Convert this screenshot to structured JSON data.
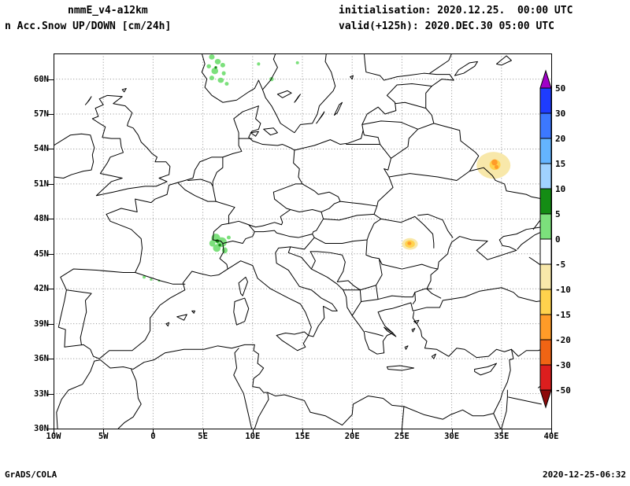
{
  "header": {
    "model_title": "nmmE_v4-a12km",
    "variable_title": "n Acc.Snow UP/DOWN [cm/24h]",
    "init_line": "initialisation: 2020.12.25.  00:00 UTC",
    "valid_line": "valid(+125h): 2020.DEC.30 05:00 UTC"
  },
  "footer": {
    "credit": "GrADS/COLA",
    "generated": "2020-12-25-06:32"
  },
  "chart_data": {
    "type": "map",
    "projection": "latlon",
    "region": "Europe",
    "lon_range": [
      -10,
      40
    ],
    "lat_range": [
      30,
      62.2
    ],
    "grid": "dotted",
    "grid_color": "#909090",
    "map_outline_color": "#000000",
    "lat_ticks": [
      {
        "label": "60N",
        "value": 60
      },
      {
        "label": "57N",
        "value": 57
      },
      {
        "label": "54N",
        "value": 54
      },
      {
        "label": "51N",
        "value": 51
      },
      {
        "label": "48N",
        "value": 48
      },
      {
        "label": "45N",
        "value": 45
      },
      {
        "label": "42N",
        "value": 42
      },
      {
        "label": "39N",
        "value": 39
      },
      {
        "label": "36N",
        "value": 36
      },
      {
        "label": "33N",
        "value": 33
      },
      {
        "label": "30N",
        "value": 30
      }
    ],
    "lon_ticks": [
      {
        "label": "10W",
        "value": -10
      },
      {
        "label": "5W",
        "value": -5
      },
      {
        "label": "0",
        "value": 0
      },
      {
        "label": "5E",
        "value": 5
      },
      {
        "label": "10E",
        "value": 10
      },
      {
        "label": "15E",
        "value": 15
      },
      {
        "label": "20E",
        "value": 20
      },
      {
        "label": "25E",
        "value": 25
      },
      {
        "label": "30E",
        "value": 30
      },
      {
        "label": "35E",
        "value": 35
      },
      {
        "label": "40E",
        "value": 40
      }
    ],
    "colorbar": {
      "unit": "cm/24h",
      "labels": [
        "50",
        "30",
        "20",
        "15",
        "10",
        "5",
        "0",
        "-5",
        "-10",
        "-15",
        "-20",
        "-30",
        "-50"
      ],
      "colors": [
        "#a000c8",
        "#1e3cff",
        "#3c78ff",
        "#64b4ff",
        "#a0d2ff",
        "#148c14",
        "#7ce07c",
        "#ffffff",
        "#f8e8aa",
        "#ffd24d",
        "#ff9b28",
        "#f06414",
        "#dc1e1e",
        "#8c0a0a"
      ]
    },
    "anomalies": [
      {
        "name": "snow-decrease-halo-russia",
        "lon": 34.2,
        "lat": 52.6,
        "rx": 1.7,
        "ry": 1.15,
        "color": "#f8e8aa"
      },
      {
        "name": "snow-decrease-mid-russia",
        "lon": 34.35,
        "lat": 52.65,
        "rx": 0.55,
        "ry": 0.45,
        "color": "#ffd24d"
      },
      {
        "name": "snow-decrease-core-russia",
        "lon": 34.3,
        "lat": 52.85,
        "rx": 0.3,
        "ry": 0.26,
        "color": "#ff9b28"
      },
      {
        "name": "snow-decrease-core-russia-2",
        "lon": 34.5,
        "lat": 52.45,
        "rx": 0.2,
        "ry": 0.17,
        "color": "#ff9b28"
      },
      {
        "name": "snow-decrease-halo-romania",
        "lon": 25.8,
        "lat": 45.85,
        "rx": 0.8,
        "ry": 0.5,
        "color": "#f8e8aa"
      },
      {
        "name": "snow-decrease-mid-romania",
        "lon": 25.8,
        "lat": 45.85,
        "rx": 0.5,
        "ry": 0.33,
        "color": "#ffd24d"
      },
      {
        "name": "snow-decrease-core-romania",
        "lon": 25.75,
        "lat": 45.9,
        "rx": 0.2,
        "ry": 0.15,
        "color": "#ff9b28"
      },
      {
        "name": "snow-increase-norway-1",
        "lon": 5.9,
        "lat": 61.9,
        "rx": 0.28,
        "ry": 0.22,
        "color": "#7ce07c"
      },
      {
        "name": "snow-increase-norway-2",
        "lon": 6.5,
        "lat": 61.5,
        "rx": 0.3,
        "ry": 0.24,
        "color": "#7ce07c"
      },
      {
        "name": "snow-increase-norway-3",
        "lon": 5.6,
        "lat": 61.1,
        "rx": 0.22,
        "ry": 0.18,
        "color": "#7ce07c"
      },
      {
        "name": "snow-increase-norway-4",
        "lon": 7.0,
        "lat": 61.2,
        "rx": 0.24,
        "ry": 0.2,
        "color": "#7ce07c"
      },
      {
        "name": "snow-increase-norway-5",
        "lon": 6.2,
        "lat": 60.7,
        "rx": 0.34,
        "ry": 0.28,
        "color": "#7ce07c"
      },
      {
        "name": "snow-increase-norway-6",
        "lon": 7.1,
        "lat": 60.5,
        "rx": 0.2,
        "ry": 0.18,
        "color": "#7ce07c"
      },
      {
        "name": "snow-increase-norway-7",
        "lon": 5.9,
        "lat": 60.1,
        "rx": 0.24,
        "ry": 0.2,
        "color": "#7ce07c"
      },
      {
        "name": "snow-increase-norway-8",
        "lon": 6.8,
        "lat": 59.9,
        "rx": 0.3,
        "ry": 0.22,
        "color": "#7ce07c"
      },
      {
        "name": "snow-increase-norway-9",
        "lon": 7.4,
        "lat": 59.6,
        "rx": 0.2,
        "ry": 0.16,
        "color": "#7ce07c"
      },
      {
        "name": "snow-increase-norway-core",
        "lon": 6.3,
        "lat": 61.0,
        "rx": 0.13,
        "ry": 0.11,
        "color": "#148c14"
      },
      {
        "name": "snow-increase-oslo-east",
        "lon": 11.9,
        "lat": 60.0,
        "rx": 0.22,
        "ry": 0.18,
        "color": "#7ce07c"
      },
      {
        "name": "snow-increase-sweden-1",
        "lon": 10.6,
        "lat": 61.3,
        "rx": 0.16,
        "ry": 0.14,
        "color": "#7ce07c"
      },
      {
        "name": "snow-increase-sweden-2",
        "lon": 14.5,
        "lat": 61.4,
        "rx": 0.16,
        "ry": 0.13,
        "color": "#7ce07c"
      },
      {
        "name": "snow-increase-alps-1",
        "lon": 6.3,
        "lat": 46.35,
        "rx": 0.45,
        "ry": 0.38,
        "color": "#7ce07c"
      },
      {
        "name": "snow-increase-alps-2",
        "lon": 6.9,
        "lat": 46.0,
        "rx": 0.5,
        "ry": 0.42,
        "color": "#7ce07c"
      },
      {
        "name": "snow-increase-alps-3",
        "lon": 6.4,
        "lat": 45.5,
        "rx": 0.38,
        "ry": 0.33,
        "color": "#7ce07c"
      },
      {
        "name": "snow-increase-alps-4",
        "lon": 7.2,
        "lat": 45.3,
        "rx": 0.28,
        "ry": 0.26,
        "color": "#7ce07c"
      },
      {
        "name": "snow-increase-alps-5",
        "lon": 5.95,
        "lat": 45.9,
        "rx": 0.3,
        "ry": 0.28,
        "color": "#7ce07c"
      },
      {
        "name": "snow-increase-alps-6",
        "lon": 7.6,
        "lat": 46.4,
        "rx": 0.2,
        "ry": 0.16,
        "color": "#7ce07c"
      },
      {
        "name": "snow-increase-alps-core-1",
        "lon": 6.45,
        "lat": 46.1,
        "rx": 0.18,
        "ry": 0.15,
        "color": "#148c14"
      },
      {
        "name": "snow-increase-alps-core-2",
        "lon": 6.7,
        "lat": 45.75,
        "rx": 0.14,
        "ry": 0.12,
        "color": "#148c14"
      },
      {
        "name": "snow-increase-pyrenees-1",
        "lon": -0.9,
        "lat": 43.0,
        "rx": 0.16,
        "ry": 0.13,
        "color": "#7ce07c"
      },
      {
        "name": "snow-increase-pyrenees-2",
        "lon": -0.2,
        "lat": 42.8,
        "rx": 0.13,
        "ry": 0.11,
        "color": "#7ce07c"
      },
      {
        "name": "snow-increase-pyrenees-3",
        "lon": 0.6,
        "lat": 42.7,
        "rx": 0.12,
        "ry": 0.1,
        "color": "#7ce07c"
      }
    ]
  }
}
